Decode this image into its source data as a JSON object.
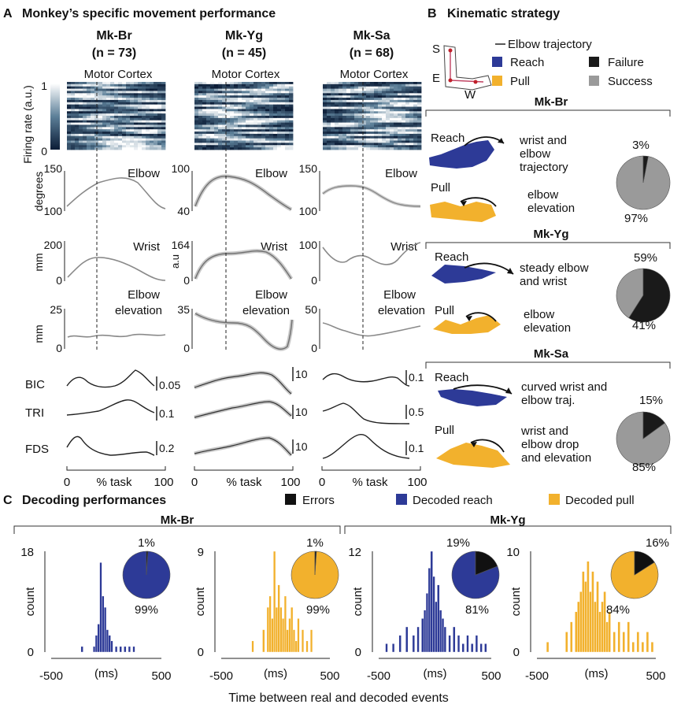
{
  "panel_a": {
    "letter": "A",
    "title": "Monkey’s specific movement performance",
    "motor_cortex": "Motor Cortex",
    "colorbar": {
      "label": "Firing rate (a.u.)",
      "max": "1",
      "min": "0"
    },
    "row_labels": {
      "elbow": "degrees",
      "wrist": "mm",
      "elev": "mm"
    },
    "x_axis": {
      "start": "0",
      "mid": "% task",
      "end": "100"
    },
    "monkeys": [
      {
        "name": "Mk-Br",
        "n": "(n = 73)",
        "elbow": {
          "label": "Elbow",
          "top": "150",
          "bottom": "100"
        },
        "wrist": {
          "label": "Wrist",
          "top": "200",
          "bottom": "0"
        },
        "elev": {
          "label_1": "Elbow",
          "label_2": "elevation",
          "top": "25",
          "bottom": "0"
        },
        "emg": [
          {
            "muscle": "BIC",
            "scale": "0.05"
          },
          {
            "muscle": "TRI",
            "scale": "0.1"
          },
          {
            "muscle": "FDS",
            "scale": "0.2"
          }
        ]
      },
      {
        "name": "Mk-Yg",
        "n": "(n = 45)",
        "elbow": {
          "label": "Elbow",
          "top": "100",
          "bottom": "40"
        },
        "wrist": {
          "label": "Wrist",
          "top": "164",
          "bottom": "0",
          "unit": "a.u"
        },
        "elev": {
          "label_1": "Elbow",
          "label_2": "elevation",
          "top": "35",
          "bottom": "0"
        },
        "emg": [
          {
            "scale": "10"
          },
          {
            "scale": "10"
          },
          {
            "scale": "10"
          }
        ]
      },
      {
        "name": "Mk-Sa",
        "n": "(n = 68)",
        "elbow": {
          "label": "Elbow",
          "top": "150",
          "bottom": "100"
        },
        "wrist": {
          "label": "Wrist",
          "top": "100",
          "bottom": "0"
        },
        "elev": {
          "label_1": "Elbow",
          "label_2": "elevation",
          "top": "50",
          "bottom": "0"
        },
        "emg": [
          {
            "scale": "0.1"
          },
          {
            "scale": "0.5"
          },
          {
            "scale": "0.1"
          }
        ]
      }
    ]
  },
  "panel_b": {
    "letter": "B",
    "title": "Kinematic strategy",
    "joints": {
      "s": "S",
      "e": "E",
      "w": "W"
    },
    "legend": {
      "trajectory": "Elbow trajectory",
      "reach": "Reach",
      "pull": "Pull",
      "failure": "Failure",
      "success": "Success"
    },
    "colors": {
      "reach": "#2d3a97",
      "pull": "#f2b12d",
      "failure": "#1a1a1a",
      "success": "#9a9a9a"
    },
    "monkeys": [
      {
        "name": "Mk-Br",
        "reach": {
          "label": "Reach",
          "desc": [
            "wrist and",
            "elbow",
            "trajectory"
          ]
        },
        "pull": {
          "label": "Pull",
          "desc": [
            "elbow",
            "elevation"
          ]
        },
        "failure_pct": 3,
        "success_pct": 97,
        "failure_text": "3%",
        "success_text": "97%"
      },
      {
        "name": "Mk-Yg",
        "reach": {
          "label": "Reach",
          "desc": [
            "steady elbow",
            "and wrist"
          ]
        },
        "pull": {
          "label": "Pull",
          "desc": [
            "elbow",
            "elevation"
          ]
        },
        "failure_pct": 59,
        "success_pct": 41,
        "failure_text": "59%",
        "success_text": "41%"
      },
      {
        "name": "Mk-Sa",
        "reach": {
          "label": "Reach",
          "desc": [
            "curved wrist and",
            "elbow traj."
          ]
        },
        "pull": {
          "label": "Pull",
          "desc": [
            "wrist and",
            "elbow drop",
            "and  elevation"
          ]
        },
        "failure_pct": 15,
        "success_pct": 85,
        "failure_text": "15%",
        "success_text": "85%"
      }
    ]
  },
  "panel_c": {
    "letter": "C",
    "title": "Decoding performances",
    "legend": {
      "errors": "Errors",
      "reach": "Decoded reach",
      "pull": "Decoded pull"
    },
    "groups": [
      "Mk-Br",
      "Mk-Yg"
    ],
    "xlabel": "Time between real and decoded events",
    "unit": "(ms)",
    "ylabel": "count",
    "x_ticks": [
      "-500",
      "500"
    ],
    "colors": {
      "reach": "#2d3a97",
      "pull": "#f2b12d",
      "error": "#111111"
    }
  },
  "chart_data": [
    {
      "type": "bar",
      "title": "Mk-Br decoded reach",
      "ylabel": "count",
      "xlabel": "(ms)",
      "xlim": [
        -500,
        500
      ],
      "ylim": [
        0,
        18
      ],
      "y_ticks": [
        "18",
        "0"
      ],
      "bin_centers": [
        -220,
        -110,
        -90,
        -70,
        -50,
        -30,
        -10,
        10,
        30,
        50,
        90,
        130,
        170,
        210,
        250
      ],
      "values": [
        1,
        1,
        3,
        5,
        16,
        10,
        8,
        4,
        3,
        2,
        1,
        1,
        1,
        1,
        1
      ],
      "pie": {
        "error_pct": 1,
        "correct_pct": 99,
        "error_text": "1%",
        "correct_text": "99%"
      }
    },
    {
      "type": "bar",
      "title": "Mk-Br decoded pull",
      "ylabel": "count",
      "xlabel": "(ms)",
      "xlim": [
        -500,
        500
      ],
      "ylim": [
        0,
        9
      ],
      "y_ticks": [
        "9",
        "0"
      ],
      "bin_centers": [
        -210,
        -110,
        -70,
        -50,
        -30,
        -10,
        10,
        30,
        50,
        70,
        90,
        110,
        130,
        150,
        170,
        190,
        210,
        250,
        290,
        330
      ],
      "values": [
        1,
        2,
        4,
        5,
        3,
        9,
        4,
        6,
        4,
        3,
        5,
        2,
        3,
        4,
        2,
        1,
        3,
        2,
        1,
        2
      ],
      "pie": {
        "error_pct": 1,
        "correct_pct": 99,
        "error_text": "1%",
        "correct_text": "99%"
      }
    },
    {
      "type": "bar",
      "title": "Mk-Yg decoded reach",
      "ylabel": "count",
      "xlabel": "(ms)",
      "xlim": [
        -500,
        500
      ],
      "ylim": [
        0,
        12
      ],
      "y_ticks": [
        "12",
        "0"
      ],
      "bin_centers": [
        -430,
        -370,
        -310,
        -250,
        -190,
        -150,
        -110,
        -90,
        -70,
        -50,
        -30,
        -10,
        10,
        30,
        50,
        70,
        90,
        130,
        170,
        210,
        250,
        290,
        330,
        370,
        410,
        450
      ],
      "values": [
        1,
        1,
        2,
        3,
        2,
        3,
        4,
        5,
        7,
        10,
        12,
        9,
        6,
        8,
        5,
        4,
        3,
        2,
        3,
        2,
        1,
        2,
        1,
        2,
        1,
        1
      ],
      "pie": {
        "error_pct": 19,
        "correct_pct": 81,
        "error_text": "19%",
        "correct_text": "81%"
      }
    },
    {
      "type": "bar",
      "title": "Mk-Yg decoded pull",
      "ylabel": "count",
      "xlabel": "(ms)",
      "xlim": [
        -500,
        500
      ],
      "ylim": [
        0,
        10
      ],
      "y_ticks": [
        "10",
        "0"
      ],
      "bin_centers": [
        -410,
        -250,
        -210,
        -170,
        -150,
        -130,
        -110,
        -90,
        -70,
        -50,
        -30,
        -10,
        10,
        30,
        50,
        70,
        90,
        110,
        150,
        190,
        230,
        270,
        310,
        350,
        390,
        430,
        470
      ],
      "values": [
        1,
        2,
        3,
        4,
        5,
        6,
        8,
        7,
        9,
        6,
        8,
        5,
        7,
        4,
        5,
        6,
        3,
        4,
        2,
        3,
        2,
        3,
        1,
        2,
        1,
        2,
        1
      ],
      "pie": {
        "error_pct": 16,
        "correct_pct": 84,
        "error_text": "16%",
        "correct_text": "84%"
      }
    }
  ]
}
